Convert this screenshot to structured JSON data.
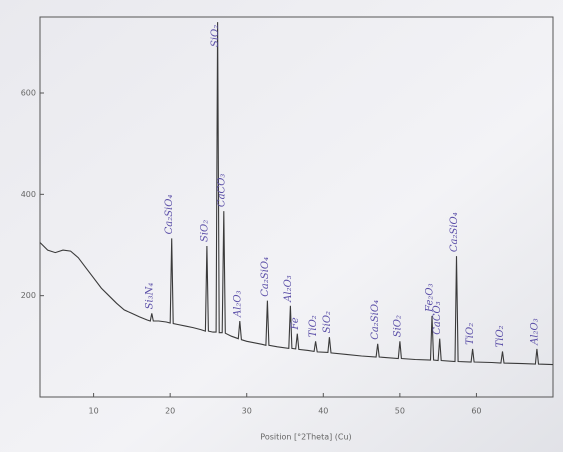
{
  "chart_data": {
    "type": "line",
    "xlabel": "Position [°2Theta] (Cu)",
    "xlim": [
      3,
      70
    ],
    "xticks": [
      10,
      20,
      30,
      40,
      50,
      60
    ],
    "ylim": [
      0,
      750
    ],
    "yticks": [
      200,
      400,
      600
    ],
    "color": "#3a3a3a",
    "x": [
      3,
      4,
      5,
      6,
      7,
      8,
      9,
      10,
      11,
      12,
      13,
      14,
      15,
      16,
      17,
      17.4,
      17.6,
      17.8,
      18.5,
      19.5,
      20,
      20.2,
      20.4,
      21,
      22,
      23,
      24,
      24.6,
      24.8,
      25,
      25.6,
      26,
      26.2,
      26.4,
      26.8,
      27,
      27.2,
      28,
      28.9,
      29.1,
      29.3,
      30,
      31,
      32,
      32.5,
      32.7,
      32.9,
      34,
      35.5,
      35.7,
      35.9,
      36.4,
      36.6,
      36.8,
      38,
      38.8,
      39,
      39.2,
      40.6,
      40.8,
      41,
      43,
      45,
      46.9,
      47.1,
      47.3,
      49.8,
      50,
      50.2,
      52,
      54,
      54.2,
      54.4,
      55,
      55.2,
      55.4,
      57.2,
      57.4,
      57.6,
      59.3,
      59.5,
      59.7,
      62,
      63.2,
      63.4,
      63.6,
      66,
      67.7,
      67.9,
      68.1,
      70
    ],
    "values": [
      305,
      290,
      285,
      290,
      288,
      275,
      255,
      235,
      215,
      200,
      185,
      172,
      165,
      158,
      152,
      150,
      165,
      150,
      150,
      148,
      146,
      313,
      145,
      143,
      140,
      137,
      133,
      130,
      298,
      130,
      128,
      128,
      740,
      127,
      127,
      367,
      126,
      120,
      115,
      150,
      113,
      110,
      107,
      104,
      102,
      190,
      102,
      99,
      96,
      180,
      96,
      95,
      125,
      94,
      92,
      90,
      110,
      89,
      88,
      118,
      87,
      84,
      81,
      79,
      105,
      79,
      76,
      110,
      76,
      74,
      73,
      160,
      73,
      72,
      115,
      72,
      70,
      278,
      70,
      69,
      95,
      69,
      68,
      67,
      90,
      67,
      66,
      65,
      95,
      65,
      64
    ],
    "annotations": [
      {
        "x": 17.6,
        "text": "Si₃N₄"
      },
      {
        "x": 20.2,
        "text": "Ca₂SiO₄"
      },
      {
        "x": 24.8,
        "text": "SiO₂"
      },
      {
        "x": 26.2,
        "text": "SiO₂"
      },
      {
        "x": 27,
        "text": "CaCO₃"
      },
      {
        "x": 29.1,
        "text": "Al₂O₃"
      },
      {
        "x": 32.7,
        "text": "Ca₂SiO₄"
      },
      {
        "x": 35.7,
        "text": "Al₂O₃"
      },
      {
        "x": 36.6,
        "text": "Fe"
      },
      {
        "x": 39,
        "text": "TiO₂"
      },
      {
        "x": 40.8,
        "text": "SiO₂"
      },
      {
        "x": 47.1,
        "text": "Ca₂SiO₄"
      },
      {
        "x": 50,
        "text": "SiO₂"
      },
      {
        "x": 54.2,
        "text": "Fe₂O₃"
      },
      {
        "x": 55.2,
        "text": "CaCO₃"
      },
      {
        "x": 57.4,
        "text": "Ca₂SiO₄"
      },
      {
        "x": 59.5,
        "text": "TiO₂"
      },
      {
        "x": 63.4,
        "text": "TiO₂"
      },
      {
        "x": 67.9,
        "text": "Al₂O₃"
      }
    ]
  }
}
